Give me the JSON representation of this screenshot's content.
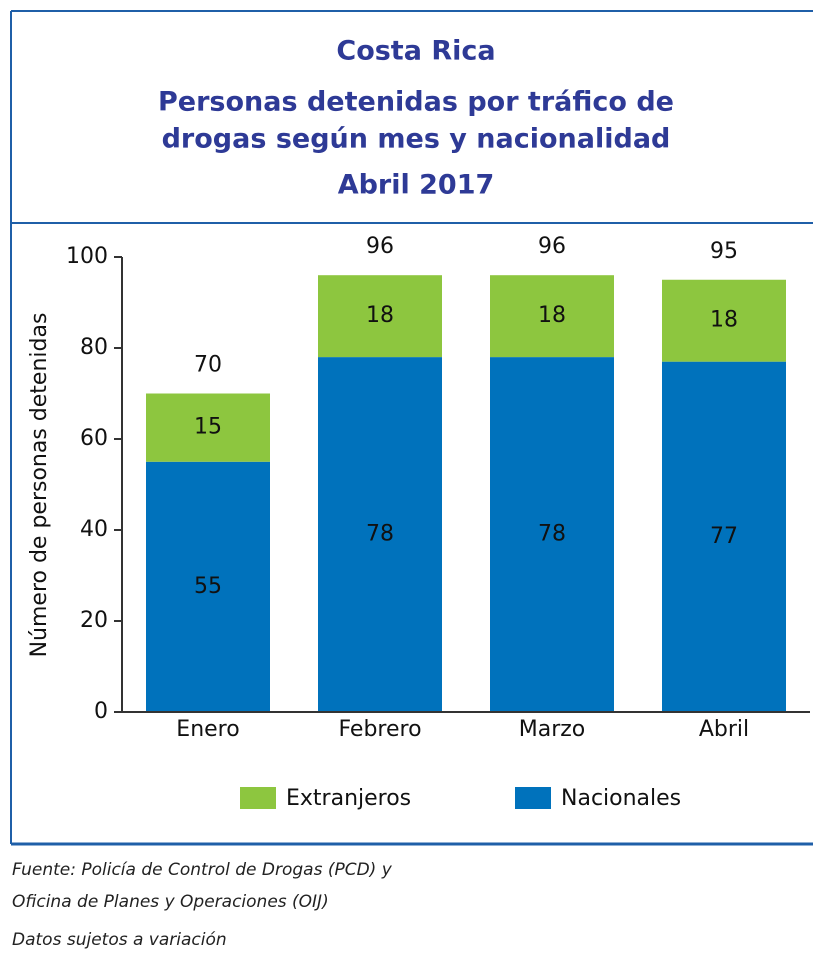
{
  "chart_data": {
    "type": "stacked_bar",
    "title": "Costa Rica",
    "subtitle": [
      "Personas detenidas  por tráfico de",
      "drogas según mes y nacionalidad"
    ],
    "period": "Abril  2017",
    "y_label": "Número de personas detenidas",
    "categories": [
      "Enero",
      "Febrero",
      "Marzo",
      "Abril"
    ],
    "series": [
      {
        "name": "Nacionales",
        "color": "#0072bc",
        "values": [
          55,
          78,
          78,
          77
        ]
      },
      {
        "name": "Extranjeros",
        "color": "#8dc63f",
        "values": [
          15,
          18,
          18,
          18
        ]
      }
    ],
    "totals": [
      70,
      96,
      96,
      95
    ],
    "ylim": [
      0,
      100
    ],
    "yticks": [
      0,
      20,
      40,
      60,
      80,
      100
    ],
    "source": [
      "Fuente: Policía de Control de Drogas (PCD) y",
      "Oficina de Planes y Operaciones (OIJ)"
    ],
    "note": "Datos sujetos a variación"
  }
}
